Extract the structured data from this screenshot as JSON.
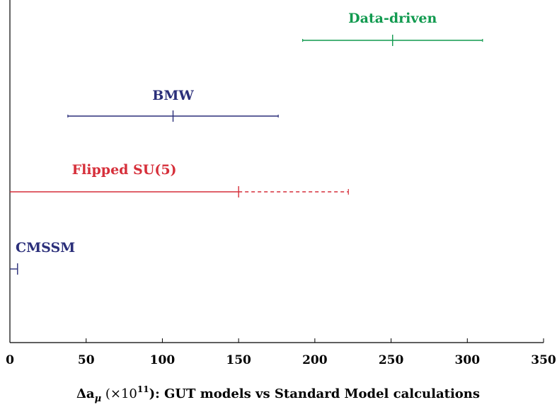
{
  "chart_data": {
    "type": "errorbar",
    "xlim": [
      0,
      350
    ],
    "xticks": [
      0,
      50,
      100,
      150,
      200,
      250,
      300,
      350
    ],
    "xlabel_parts": {
      "delta": "Δa",
      "sub": "μ",
      "open": " (×10",
      "exp": "11",
      "rest": "): GUT models vs Standard Model calculations"
    },
    "series": [
      {
        "name": "Data-driven",
        "center": 251,
        "low": 192,
        "high": 310,
        "color": "#119a4f",
        "dashed_to": null
      },
      {
        "name": "BMW",
        "center": 107,
        "low": 38,
        "high": 176,
        "color": "#2b2f7a",
        "dashed_to": null
      },
      {
        "name": "Flipped SU(5)",
        "center": 150,
        "low": 0,
        "high": 150,
        "color": "#d62f3a",
        "dashed_to": 222
      },
      {
        "name": "CMSSM",
        "center": 5,
        "low": 0,
        "high": 5,
        "color": "#2b2f7a",
        "dashed_to": null
      }
    ]
  }
}
